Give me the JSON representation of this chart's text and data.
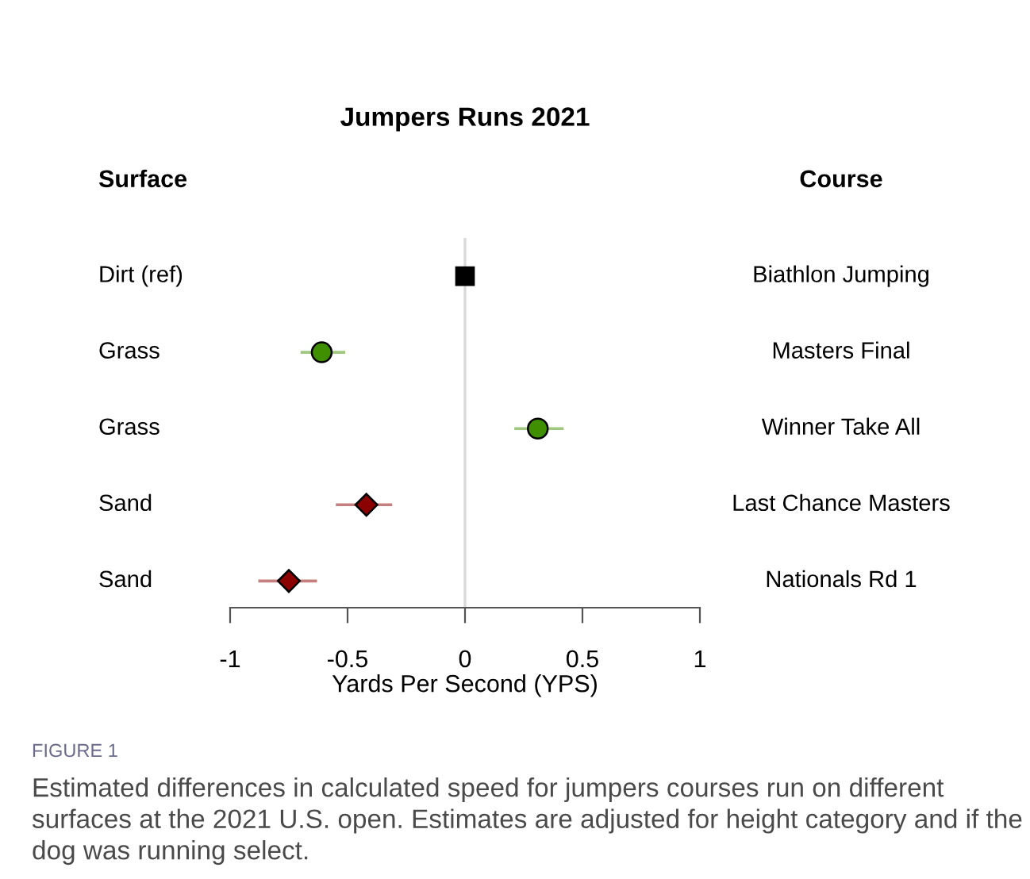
{
  "chart_data": {
    "type": "scatter",
    "orientation": "horizontal",
    "title": "Jumpers Runs 2021",
    "xlabel": "Yards Per Second (YPS)",
    "ylabel": "Surface",
    "y2label": "Course",
    "categories": [
      "Dirt (ref)",
      "Grass",
      "Grass",
      "Sand",
      "Sand"
    ],
    "y2_categories": [
      "Biathlon Jumping",
      "Masters Final",
      "Winner Take All",
      "Last Chance Masters",
      "Nationals Rd 1"
    ],
    "series": [
      {
        "color": "#000000",
        "marker": "square",
        "values": [
          0,
          null,
          null,
          null,
          null
        ]
      },
      {
        "color": "#3f8f00",
        "marker": "circle",
        "values": [
          null,
          -0.61,
          0.31,
          null,
          null
        ],
        "errors": [
          null,
          [
            -0.7,
            -0.51
          ],
          [
            0.21,
            0.42
          ],
          null,
          null
        ]
      },
      {
        "color": "#8b0000",
        "marker": "diamond",
        "values": [
          null,
          null,
          null,
          -0.42,
          -0.75
        ],
        "errors": [
          null,
          null,
          null,
          [
            -0.55,
            -0.31
          ],
          [
            -0.88,
            -0.63
          ]
        ]
      }
    ],
    "xlim": [
      -1,
      1
    ],
    "xticks": [
      -1,
      -0.5,
      0,
      0.5,
      1
    ],
    "tick_labels": "x",
    "ref_lines": [
      {
        "axis": "x",
        "value": 0,
        "color": "#d9d9d9"
      }
    ],
    "grid": false,
    "legend": false,
    "annotations": [
      "FIGURE 1",
      "Estimated differences in calculated speed for jumpers courses run on different surfaces at the 2021 U.S. open. Estimates are adjusted for height category and if the dog was running select."
    ]
  }
}
